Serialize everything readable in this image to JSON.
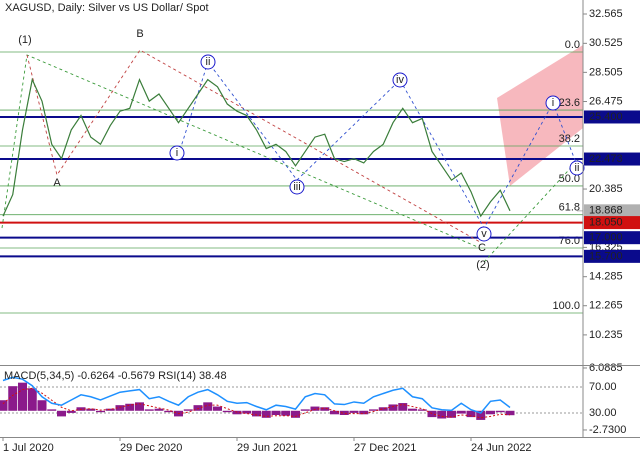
{
  "chart_data": [
    {
      "type": "line",
      "title": "XAGUSD, Daily:  Silver vs US Dollar/ Spot",
      "categories": [
        "1 Jul 2020",
        null,
        null,
        null,
        null,
        null,
        null,
        null,
        null,
        null,
        null,
        null,
        "29 Dec 2020",
        null,
        null,
        null,
        null,
        null,
        null,
        null,
        null,
        null,
        null,
        null,
        "29 Jun 2021",
        null,
        null,
        null,
        null,
        null,
        null,
        null,
        null,
        null,
        null,
        null,
        "27 Dec 2021",
        null,
        null,
        null,
        null,
        null,
        null,
        null,
        null,
        null,
        null,
        null,
        "24 Jun 2022",
        null,
        null,
        null,
        null
      ],
      "series": [
        {
          "color": "#3a7d3a",
          "values": [
            18.5,
            20.0,
            24.5,
            28.0,
            26.5,
            23.5,
            22.5,
            24.5,
            25.5,
            24.0,
            23.5,
            24.8,
            25.8,
            26.0,
            28.0,
            26.5,
            27.0,
            26.0,
            25.0,
            26.0,
            27.0,
            28.0,
            27.5,
            26.3,
            25.8,
            25.5,
            24.5,
            23.2,
            23.5,
            23.0,
            22.0,
            23.0,
            24.0,
            24.2,
            22.5,
            22.3,
            22.5,
            22.2,
            23.0,
            23.5,
            25.0,
            26.0,
            25.0,
            25.3,
            23.0,
            22.0,
            21.0,
            21.5,
            20.2,
            18.5,
            19.5,
            20.3,
            18.87
          ]
        }
      ],
      "ylim": [
        8.14,
        33.54
      ],
      "yticks": [
        32.565,
        30.525,
        28.505,
        26.475,
        20.385,
        16.325,
        14.285,
        12.265,
        10.235
      ],
      "levels": [
        {
          "value": 25.4,
          "label": "25.400",
          "color": "#0a0a8c"
        },
        {
          "value": 22.473,
          "label": "22.473",
          "color": "#0a0a8c"
        },
        {
          "value": 18.868,
          "label": "18.868",
          "color": "#b0b0b0"
        },
        {
          "value": 18.05,
          "label": "18.050",
          "color": "#d01010"
        },
        {
          "value": 17.0,
          "label": "17.000",
          "color": "#0a0a8c"
        },
        {
          "value": 15.7,
          "label": "15.700",
          "color": "#0a0a8c"
        }
      ],
      "fib_levels": [
        {
          "name": "0.0",
          "price": 29.92
        },
        {
          "name": "23.6",
          "price": 25.88
        },
        {
          "name": "38.2",
          "price": 23.38
        },
        {
          "name": "50.0",
          "price": 20.6
        },
        {
          "name": "61.8",
          "price": 18.6
        },
        {
          "name": "76.0",
          "price": 16.28
        },
        {
          "name": "100.0",
          "price": 11.76
        }
      ],
      "annotations": [
        "(1)",
        "B",
        "A",
        "ii",
        "i",
        "iii",
        "iv",
        "v",
        "(2)",
        "C",
        "i",
        "ii"
      ]
    },
    {
      "type": "bar",
      "title": "MACD(5,34,5) -0.6264 -0.5679 RSI(14) 38.48",
      "series": [
        {
          "color": "#8b1a8b",
          "values": [
            1.5,
            3.5,
            4.0,
            3.2,
            1.5,
            0.2,
            -0.8,
            -0.3,
            0.5,
            0.3,
            -0.2,
            0.3,
            0.8,
            1.0,
            1.2,
            0.2,
            0.3,
            -0.2,
            -0.8,
            0.2,
            0.8,
            1.2,
            0.6,
            -0.2,
            -0.5,
            -0.4,
            -0.8,
            -1.0,
            -0.6,
            -0.7,
            -1.0,
            0.2,
            0.6,
            0.5,
            -0.5,
            -0.6,
            -0.3,
            -0.5,
            0.2,
            0.5,
            0.9,
            1.1,
            0.3,
            0.2,
            -0.9,
            -1.1,
            -1.0,
            -0.4,
            -0.9,
            -1.3,
            -0.5,
            -0.2,
            -0.63
          ]
        },
        {
          "color": "#d01010",
          "values": [
            1.0,
            2.2,
            3.0,
            3.2,
            2.5,
            1.5,
            0.5,
            0,
            0.2,
            0.3,
            0.1,
            0.2,
            0.5,
            0.8,
            1.0,
            0.7,
            0.4,
            0.1,
            -0.4,
            -0.2,
            0.3,
            0.8,
            0.8,
            0.3,
            -0.2,
            -0.4,
            -0.6,
            -0.8,
            -0.7,
            -0.7,
            -0.8,
            -0.3,
            0.2,
            0.4,
            0,
            -0.4,
            -0.4,
            -0.4,
            -0.1,
            0.3,
            0.6,
            0.9,
            0.6,
            0.3,
            -0.4,
            -0.8,
            -0.9,
            -0.6,
            -0.7,
            -1.0,
            -0.8,
            -0.5,
            -0.57
          ]
        },
        {
          "color": "#1e90ff",
          "axis": "y2",
          "values": [
            80,
            85,
            82,
            72,
            55,
            45,
            42,
            50,
            58,
            55,
            50,
            56,
            62,
            64,
            66,
            52,
            55,
            48,
            42,
            55,
            62,
            66,
            58,
            48,
            45,
            46,
            40,
            35,
            42,
            40,
            36,
            55,
            60,
            58,
            44,
            43,
            47,
            45,
            55,
            60,
            65,
            68,
            55,
            52,
            38,
            35,
            34,
            45,
            35,
            30,
            48,
            50,
            38.48
          ]
        }
      ],
      "ylim": [
        -3.73,
        6.37
      ],
      "yticks": [
        6.0885,
        {
          "value": -2.73,
          "label": "-2.7300"
        }
      ],
      "y2lim": [
        -6.9,
        102.3
      ],
      "y2ticks": [
        {
          "value": 70,
          "label": "70.00"
        },
        {
          "value": 30,
          "label": "30.00"
        }
      ]
    }
  ]
}
